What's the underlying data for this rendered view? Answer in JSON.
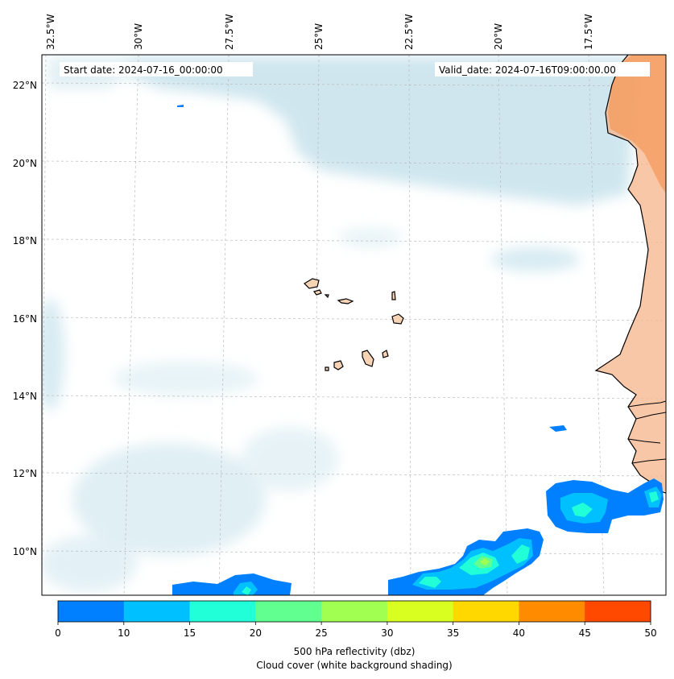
{
  "map": {
    "start_date_label": "Start date: 2024-07-16_00:00:00",
    "valid_date_label": "Valid_date: 2024-07-16T09:00:00.00",
    "lon_labels": [
      "32.5°W",
      "30°W",
      "27.5°W",
      "25°W",
      "22.5°W",
      "20°W",
      "17.5°W"
    ],
    "lat_labels": [
      "22°N",
      "20°N",
      "18°N",
      "16°N",
      "14°N",
      "12°N",
      "10°N"
    ],
    "extent": {
      "lon_min": -33.0,
      "lon_max": -16.0,
      "lat_min": 8.9,
      "lat_max": 22.8
    },
    "ocean_color": "#ffffff",
    "land_color": "#f4a36a",
    "island_color": "#f7d3b5",
    "cloud_color": "#a8d4e2",
    "gridlines": true
  },
  "colorbar": {
    "ticks": [
      "0",
      "10",
      "15",
      "20",
      "25",
      "30",
      "35",
      "40",
      "45",
      "50"
    ],
    "colors": [
      "#0080ff",
      "#00c0ff",
      "#20ffd8",
      "#60ff90",
      "#a0ff50",
      "#d8ff20",
      "#ffd800",
      "#ff8c00",
      "#ff4800"
    ],
    "label": "500 hPa reflectivity (dbz)",
    "sublabel": "Cloud cover (white background shading)"
  }
}
